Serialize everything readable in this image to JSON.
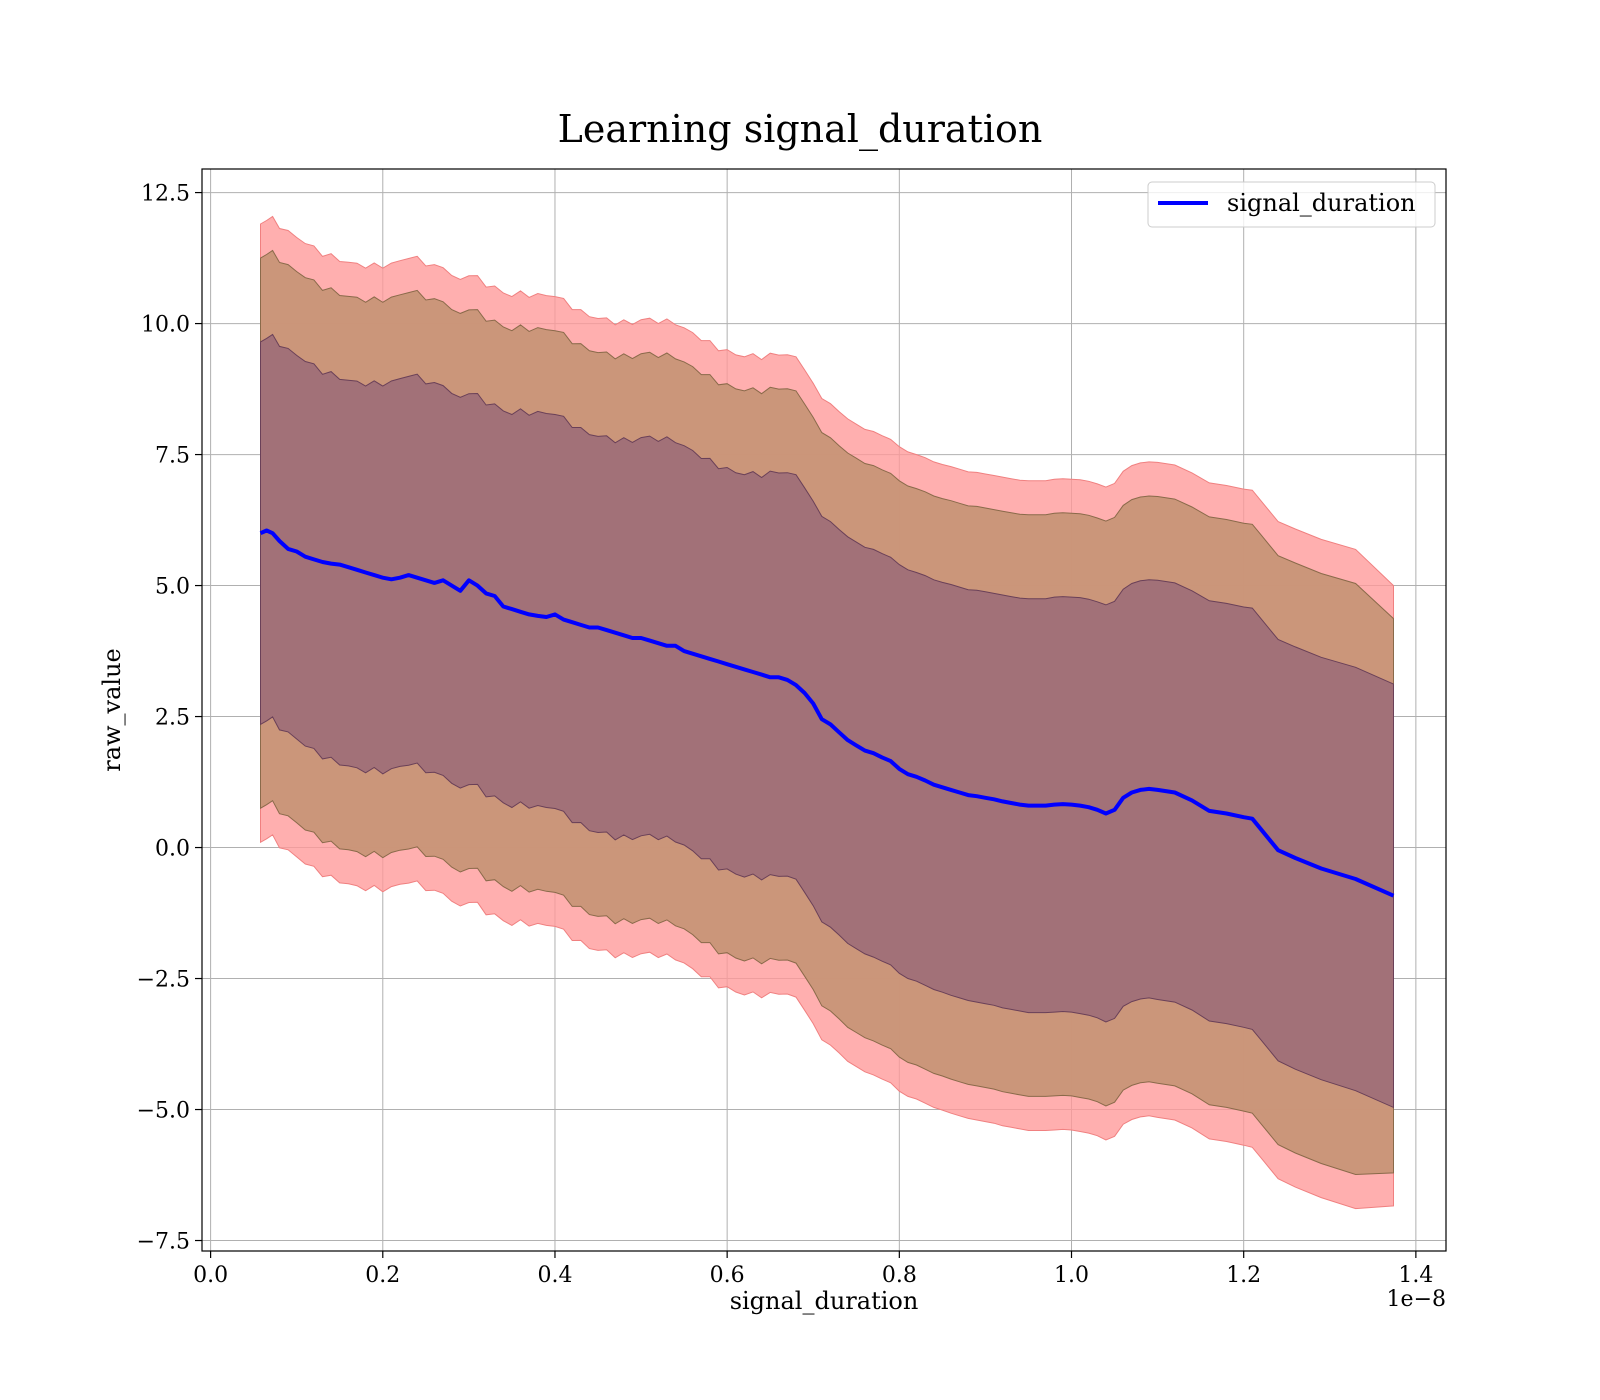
{
  "chart_data": {
    "type": "line",
    "title": "Learning signal_duration",
    "xlabel": "signal_duration",
    "ylabel": "raw_value",
    "x_offset_label": "1e−8",
    "xlim": [
      -0.01,
      1.435
    ],
    "ylim": [
      -7.7,
      12.95
    ],
    "x_ticks": [
      0.0,
      0.2,
      0.4,
      0.6,
      0.8,
      1.0,
      1.2,
      1.4
    ],
    "x_tick_labels": [
      "0.0",
      "0.2",
      "0.4",
      "0.6",
      "0.8",
      "1.0",
      "1.2",
      "1.4"
    ],
    "y_ticks": [
      -7.5,
      -5.0,
      -2.5,
      0.0,
      2.5,
      5.0,
      7.5,
      10.0,
      12.5
    ],
    "y_tick_labels": [
      "−7.5",
      "−5.0",
      "−2.5",
      "0.0",
      "2.5",
      "5.0",
      "7.5",
      "10.0",
      "12.5"
    ],
    "grid": true,
    "legend": {
      "placement": "upper-right",
      "entries": [
        "signal_duration"
      ]
    },
    "colors": {
      "line": "#0000ff",
      "band_outer": "#ff9999",
      "band_middle": "#c89577",
      "band_inner": "#a07078"
    },
    "series": [
      {
        "name": "signal_duration",
        "x": [
          0.058,
          0.065,
          0.072,
          0.08,
          0.09,
          0.1,
          0.11,
          0.12,
          0.13,
          0.14,
          0.15,
          0.16,
          0.17,
          0.18,
          0.19,
          0.2,
          0.21,
          0.22,
          0.23,
          0.24,
          0.25,
          0.26,
          0.27,
          0.28,
          0.29,
          0.3,
          0.31,
          0.32,
          0.33,
          0.34,
          0.35,
          0.36,
          0.37,
          0.38,
          0.39,
          0.4,
          0.41,
          0.42,
          0.43,
          0.44,
          0.45,
          0.46,
          0.47,
          0.48,
          0.49,
          0.5,
          0.51,
          0.52,
          0.53,
          0.54,
          0.55,
          0.56,
          0.57,
          0.58,
          0.59,
          0.6,
          0.61,
          0.62,
          0.63,
          0.64,
          0.65,
          0.66,
          0.67,
          0.68,
          0.69,
          0.7,
          0.71,
          0.72,
          0.73,
          0.74,
          0.75,
          0.76,
          0.77,
          0.78,
          0.79,
          0.8,
          0.81,
          0.82,
          0.83,
          0.84,
          0.85,
          0.86,
          0.87,
          0.88,
          0.89,
          0.9,
          0.91,
          0.92,
          0.93,
          0.94,
          0.95,
          0.96,
          0.97,
          0.98,
          0.99,
          1.0,
          1.01,
          1.02,
          1.03,
          1.04,
          1.05,
          1.06,
          1.07,
          1.08,
          1.09,
          1.1,
          1.12,
          1.14,
          1.16,
          1.18,
          1.2,
          1.21,
          1.22,
          1.24,
          1.26,
          1.29,
          1.33,
          1.374
        ],
        "values": [
          6.0,
          6.05,
          6.0,
          5.85,
          5.7,
          5.65,
          5.55,
          5.5,
          5.45,
          5.42,
          5.4,
          5.35,
          5.3,
          5.25,
          5.2,
          5.15,
          5.12,
          5.15,
          5.2,
          5.15,
          5.1,
          5.05,
          5.1,
          5.0,
          4.9,
          5.1,
          5.0,
          4.85,
          4.8,
          4.6,
          4.55,
          4.5,
          4.45,
          4.42,
          4.4,
          4.45,
          4.35,
          4.3,
          4.25,
          4.2,
          4.2,
          4.15,
          4.1,
          4.05,
          4.0,
          4.0,
          3.95,
          3.9,
          3.85,
          3.85,
          3.75,
          3.7,
          3.65,
          3.6,
          3.55,
          3.5,
          3.45,
          3.4,
          3.35,
          3.3,
          3.25,
          3.25,
          3.2,
          3.1,
          2.95,
          2.75,
          2.45,
          2.35,
          2.2,
          2.05,
          1.95,
          1.85,
          1.8,
          1.72,
          1.65,
          1.5,
          1.4,
          1.35,
          1.28,
          1.2,
          1.15,
          1.1,
          1.05,
          1.0,
          0.98,
          0.95,
          0.92,
          0.88,
          0.85,
          0.82,
          0.8,
          0.8,
          0.8,
          0.82,
          0.83,
          0.82,
          0.8,
          0.77,
          0.72,
          0.65,
          0.72,
          0.95,
          1.05,
          1.1,
          1.12,
          1.1,
          1.05,
          0.9,
          0.7,
          0.65,
          0.58,
          0.55,
          0.35,
          -0.05,
          -0.2,
          -0.4,
          -0.6,
          -0.92
        ]
      }
    ],
    "bands": {
      "x": [
        0.058,
        0.065,
        0.072,
        0.08,
        0.09,
        0.1,
        0.11,
        0.12,
        0.13,
        0.14,
        0.15,
        0.16,
        0.17,
        0.18,
        0.19,
        0.2,
        0.21,
        0.22,
        0.23,
        0.24,
        0.25,
        0.26,
        0.27,
        0.28,
        0.29,
        0.3,
        0.31,
        0.32,
        0.33,
        0.34,
        0.35,
        0.36,
        0.37,
        0.38,
        0.39,
        0.4,
        0.41,
        0.42,
        0.43,
        0.44,
        0.45,
        0.46,
        0.47,
        0.48,
        0.49,
        0.5,
        0.51,
        0.52,
        0.53,
        0.54,
        0.55,
        0.56,
        0.57,
        0.58,
        0.59,
        0.6,
        0.61,
        0.62,
        0.63,
        0.64,
        0.65,
        0.66,
        0.67,
        0.68,
        0.69,
        0.7,
        0.71,
        0.72,
        0.73,
        0.74,
        0.75,
        0.76,
        0.77,
        0.78,
        0.79,
        0.8,
        0.81,
        0.82,
        0.83,
        0.84,
        0.85,
        0.86,
        0.87,
        0.88,
        0.89,
        0.9,
        0.91,
        0.92,
        0.93,
        0.94,
        0.95,
        0.96,
        0.97,
        0.98,
        0.99,
        1.0,
        1.01,
        1.02,
        1.03,
        1.04,
        1.05,
        1.06,
        1.07,
        1.08,
        1.09,
        1.1,
        1.12,
        1.14,
        1.16,
        1.18,
        1.2,
        1.21,
        1.22,
        1.24,
        1.26,
        1.29,
        1.33,
        1.374
      ],
      "inner_half_width": [
        3.65,
        3.65,
        3.65,
        3.66,
        3.66,
        3.66,
        3.67,
        3.67,
        3.67,
        3.68,
        3.68,
        3.68,
        3.69,
        3.69,
        3.69,
        3.7,
        3.7,
        3.7,
        3.71,
        3.71,
        3.71,
        3.72,
        3.72,
        3.72,
        3.73,
        3.73,
        3.73,
        3.74,
        3.74,
        3.74,
        3.75,
        3.75,
        3.75,
        3.76,
        3.76,
        3.76,
        3.77,
        3.77,
        3.77,
        3.78,
        3.78,
        3.78,
        3.79,
        3.79,
        3.79,
        3.8,
        3.8,
        3.8,
        3.81,
        3.81,
        3.81,
        3.82,
        3.82,
        3.82,
        3.83,
        3.83,
        3.83,
        3.84,
        3.84,
        3.84,
        3.85,
        3.85,
        3.85,
        3.86,
        3.86,
        3.86,
        3.87,
        3.87,
        3.87,
        3.88,
        3.88,
        3.88,
        3.89,
        3.89,
        3.89,
        3.9,
        3.9,
        3.9,
        3.91,
        3.91,
        3.91,
        3.92,
        3.92,
        3.92,
        3.93,
        3.93,
        3.93,
        3.94,
        3.94,
        3.94,
        3.95,
        3.95,
        3.95,
        3.96,
        3.96,
        3.96,
        3.97,
        3.97,
        3.97,
        3.98,
        3.98,
        3.98,
        3.99,
        3.99,
        3.99,
        4.0,
        4.0,
        4.0,
        4.01,
        4.01,
        4.01,
        4.02,
        4.02,
        4.02,
        4.03,
        4.03,
        4.04,
        4.04
      ],
      "middle_half_width": [
        5.25,
        5.25,
        5.25,
        5.26,
        5.26,
        5.26,
        5.27,
        5.27,
        5.27,
        5.28,
        5.28,
        5.28,
        5.29,
        5.29,
        5.29,
        5.3,
        5.3,
        5.3,
        5.31,
        5.31,
        5.31,
        5.32,
        5.32,
        5.32,
        5.33,
        5.33,
        5.33,
        5.34,
        5.34,
        5.34,
        5.35,
        5.35,
        5.35,
        5.36,
        5.36,
        5.36,
        5.37,
        5.37,
        5.37,
        5.38,
        5.38,
        5.38,
        5.39,
        5.39,
        5.39,
        5.4,
        5.4,
        5.4,
        5.41,
        5.41,
        5.41,
        5.42,
        5.42,
        5.42,
        5.43,
        5.43,
        5.43,
        5.44,
        5.44,
        5.44,
        5.45,
        5.45,
        5.45,
        5.46,
        5.46,
        5.46,
        5.47,
        5.47,
        5.47,
        5.48,
        5.48,
        5.48,
        5.49,
        5.49,
        5.49,
        5.5,
        5.5,
        5.5,
        5.51,
        5.51,
        5.51,
        5.52,
        5.52,
        5.52,
        5.53,
        5.53,
        5.53,
        5.54,
        5.54,
        5.54,
        5.55,
        5.55,
        5.55,
        5.56,
        5.56,
        5.56,
        5.57,
        5.57,
        5.57,
        5.58,
        5.58,
        5.58,
        5.59,
        5.59,
        5.59,
        5.6,
        5.6,
        5.6,
        5.61,
        5.61,
        5.61,
        5.62,
        5.62,
        5.62,
        5.63,
        5.63,
        5.64,
        5.29
      ],
      "outer_half_width": [
        5.9,
        5.9,
        5.9,
        5.91,
        5.91,
        5.91,
        5.92,
        5.92,
        5.92,
        5.93,
        5.93,
        5.93,
        5.94,
        5.94,
        5.94,
        5.95,
        5.95,
        5.95,
        5.96,
        5.96,
        5.96,
        5.97,
        5.97,
        5.97,
        5.98,
        5.98,
        5.98,
        5.99,
        5.99,
        5.99,
        6.0,
        6.0,
        6.0,
        6.01,
        6.01,
        6.01,
        6.02,
        6.02,
        6.02,
        6.03,
        6.03,
        6.03,
        6.04,
        6.04,
        6.04,
        6.05,
        6.05,
        6.05,
        6.06,
        6.06,
        6.06,
        6.07,
        6.07,
        6.07,
        6.08,
        6.08,
        6.08,
        6.09,
        6.09,
        6.09,
        6.1,
        6.1,
        6.1,
        6.11,
        6.11,
        6.11,
        6.12,
        6.12,
        6.12,
        6.13,
        6.13,
        6.13,
        6.14,
        6.14,
        6.14,
        6.15,
        6.15,
        6.15,
        6.16,
        6.16,
        6.16,
        6.17,
        6.17,
        6.17,
        6.18,
        6.18,
        6.18,
        6.19,
        6.19,
        6.19,
        6.2,
        6.2,
        6.2,
        6.21,
        6.21,
        6.21,
        6.22,
        6.22,
        6.22,
        6.23,
        6.23,
        6.23,
        6.24,
        6.24,
        6.24,
        6.25,
        6.25,
        6.25,
        6.26,
        6.26,
        6.26,
        6.27,
        6.27,
        6.27,
        6.28,
        6.28,
        6.29,
        5.92
      ]
    }
  }
}
